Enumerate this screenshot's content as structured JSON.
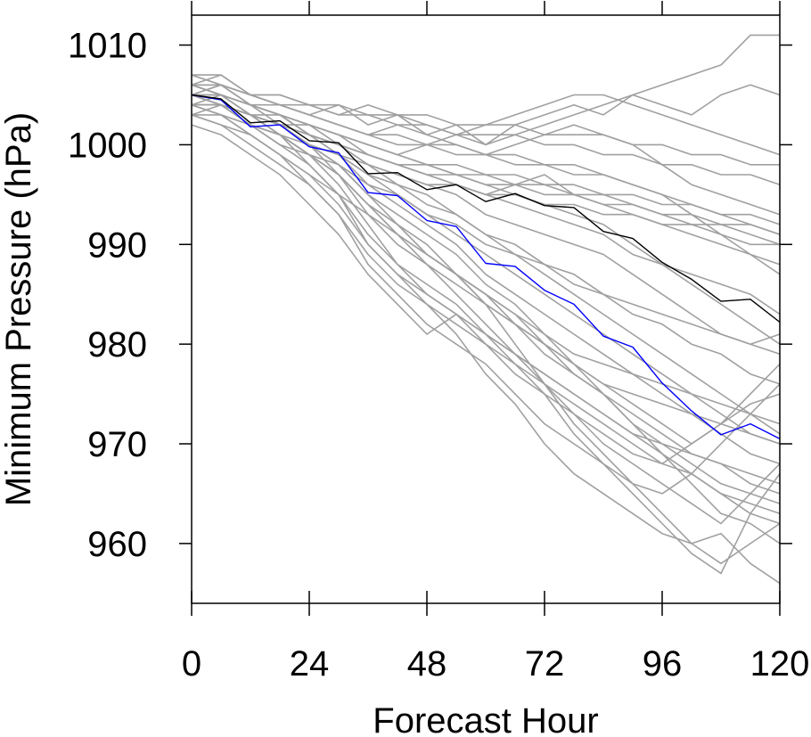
{
  "chart_data": {
    "type": "line",
    "title": "",
    "xlabel": "Forecast Hour",
    "ylabel": "Minimum Pressure (hPa)",
    "xlim": [
      0,
      120
    ],
    "ylim": [
      954,
      1013
    ],
    "xticks": [
      0,
      24,
      48,
      72,
      96,
      120
    ],
    "xtick_labels": [
      "0",
      "24",
      "48",
      "72",
      "96",
      "120"
    ],
    "yticks": [
      960,
      970,
      980,
      990,
      1000,
      1010
    ],
    "ytick_labels": [
      "960",
      "970",
      "980",
      "990",
      "1000",
      "1010"
    ],
    "grid": false,
    "legend": "none",
    "colors": {
      "ensemble": "#a0a0a0",
      "mean": "#000000",
      "highlight": "#0000ff"
    },
    "x": [
      0,
      6,
      12,
      18,
      24,
      30,
      36,
      42,
      48,
      54,
      60,
      66,
      72,
      78,
      84,
      90,
      96,
      102,
      108,
      114,
      120
    ],
    "series": [
      {
        "role": "highlight",
        "values": [
          1005,
          1004.5,
          1001.8,
          1002,
          999.8,
          999.2,
          995.2,
          994.9,
          992.4,
          991.8,
          988.1,
          987.8,
          985.4,
          984,
          980.8,
          979.7,
          976.1,
          973.3,
          970.9,
          972,
          970.5
        ]
      },
      {
        "role": "mean",
        "values": [
          1005,
          1004.6,
          1002.2,
          1002.4,
          1000.4,
          1000.2,
          997.1,
          997.2,
          995.5,
          996,
          994.3,
          995.1,
          993.9,
          993.7,
          991.3,
          990.6,
          988.2,
          986.5,
          984.3,
          984.5,
          982.2
        ]
      },
      {
        "role": "ensemble",
        "values": [
          1007,
          1006,
          1004,
          1003,
          1002,
          1001,
          1000,
          999,
          1000,
          1001,
          1000,
          1002,
          1003,
          1004,
          1003,
          1005,
          1006,
          1007,
          1008,
          1011,
          1011
        ]
      },
      {
        "role": "ensemble",
        "values": [
          1006,
          1007,
          1005,
          1004,
          1003,
          1004,
          1002,
          1003,
          1001,
          1002,
          1000,
          1001,
          1002,
          1003,
          1004,
          1005,
          1004,
          1003,
          1005,
          1006,
          1005
        ]
      },
      {
        "role": "ensemble",
        "values": [
          1005,
          1006,
          1005,
          1005,
          1004,
          1003,
          1004,
          1003,
          1002,
          1001,
          1002,
          1003,
          1004,
          1005,
          1005,
          1004,
          1003,
          1002,
          1001,
          1000,
          999
        ]
      },
      {
        "role": "ensemble",
        "values": [
          1006,
          1005,
          1004,
          1004,
          1003,
          1002,
          1001,
          1002,
          1001,
          1000,
          999,
          1000,
          1001,
          1002,
          1001,
          1000,
          998,
          996,
          995,
          994,
          993
        ]
      },
      {
        "role": "ensemble",
        "values": [
          1004,
          1005,
          1003,
          1002,
          1002,
          1001,
          999,
          998,
          997,
          996,
          995,
          996,
          997,
          995,
          994,
          993,
          992,
          991,
          990,
          989,
          988
        ]
      },
      {
        "role": "ensemble",
        "values": [
          1005,
          1004,
          1003,
          1003,
          1001,
          1000,
          998,
          997,
          996,
          995,
          993,
          992,
          991,
          990,
          989,
          987,
          985,
          983,
          981,
          980,
          979
        ]
      },
      {
        "role": "ensemble",
        "values": [
          1003,
          1004,
          1002,
          1001,
          1000,
          999,
          997,
          995,
          993,
          991,
          989,
          987,
          985,
          983,
          981,
          979,
          977,
          975,
          973,
          971,
          970
        ]
      },
      {
        "role": "ensemble",
        "values": [
          1004,
          1003,
          1002,
          1000,
          999,
          998,
          995,
          993,
          991,
          989,
          986,
          984,
          981,
          978,
          975,
          972,
          969,
          966,
          963,
          962,
          960
        ]
      },
      {
        "role": "ensemble",
        "values": [
          1005,
          1004,
          1003,
          1002,
          1000,
          998,
          995,
          992,
          990,
          987,
          984,
          980,
          976,
          972,
          969,
          966,
          963,
          960,
          958,
          960,
          962
        ]
      },
      {
        "role": "ensemble",
        "values": [
          1006,
          1005,
          1003,
          1001,
          999,
          996,
          992,
          988,
          986,
          984,
          981,
          978,
          975,
          971,
          968,
          965,
          962,
          959,
          957,
          963,
          967
        ]
      },
      {
        "role": "ensemble",
        "values": [
          1004,
          1004,
          1002,
          1001,
          998,
          995,
          990,
          987,
          984,
          981,
          977,
          974,
          970,
          967,
          965,
          963,
          961,
          960,
          961,
          958,
          956
        ]
      },
      {
        "role": "ensemble",
        "values": [
          1005,
          1005,
          1004,
          1002,
          1000,
          997,
          993,
          990,
          988,
          985,
          982,
          979,
          976,
          973,
          970,
          968,
          966,
          964,
          962,
          965,
          968
        ]
      },
      {
        "role": "ensemble",
        "values": [
          1003,
          1002,
          1000,
          998,
          996,
          993,
          989,
          986,
          984,
          982,
          980,
          978,
          976,
          974,
          972,
          970,
          968,
          967,
          965,
          964,
          963
        ]
      },
      {
        "role": "ensemble",
        "values": [
          1002,
          1001,
          999,
          997,
          994,
          991,
          987,
          984,
          981,
          983,
          980,
          977,
          975,
          973,
          971,
          969,
          968,
          970,
          972,
          975,
          978
        ]
      },
      {
        "role": "ensemble",
        "values": [
          1004,
          1003,
          1001,
          999,
          996,
          993,
          988,
          985,
          982,
          980,
          978,
          975,
          972,
          970,
          968,
          966,
          965,
          967,
          970,
          973,
          976
        ]
      },
      {
        "role": "ensemble",
        "values": [
          1006,
          1006,
          1004,
          1003,
          1001,
          999,
          996,
          994,
          992,
          990,
          987,
          985,
          983,
          981,
          979,
          977,
          975,
          973,
          971,
          969,
          968
        ]
      },
      {
        "role": "ensemble",
        "values": [
          1005,
          1004,
          1003,
          1002,
          1000,
          998,
          996,
          995,
          993,
          992,
          990,
          989,
          988,
          986,
          985,
          983,
          982,
          980,
          979,
          977,
          976
        ]
      },
      {
        "role": "ensemble",
        "values": [
          1004,
          1004,
          1002,
          1001,
          999,
          997,
          994,
          992,
          989,
          987,
          984,
          982,
          979,
          977,
          975,
          973,
          971,
          969,
          968,
          966,
          965
        ]
      },
      {
        "role": "ensemble",
        "values": [
          1006,
          1005,
          1004,
          1003,
          1002,
          1000,
          999,
          998,
          997,
          996,
          995,
          994,
          993,
          992,
          991,
          989,
          988,
          987,
          986,
          985,
          983
        ]
      },
      {
        "role": "ensemble",
        "values": [
          1005,
          1005,
          1004,
          1003,
          1001,
          1000,
          998,
          997,
          996,
          996,
          995,
          995,
          994,
          994,
          993,
          993,
          992,
          992,
          991,
          990,
          990
        ]
      },
      {
        "role": "ensemble",
        "values": [
          1007,
          1006,
          1005,
          1004,
          1003,
          1002,
          1001,
          1000,
          1000,
          999,
          999,
          998,
          998,
          997,
          997,
          996,
          995,
          994,
          993,
          992,
          991
        ]
      },
      {
        "role": "ensemble",
        "values": [
          1004,
          1004,
          1003,
          1002,
          1001,
          1000,
          999,
          998,
          997,
          997,
          996,
          996,
          995,
          995,
          994,
          994,
          993,
          993,
          992,
          992,
          991
        ]
      },
      {
        "role": "ensemble",
        "values": [
          1005,
          1006,
          1005,
          1004,
          1004,
          1003,
          1003,
          1002,
          1002,
          1001,
          1001,
          1001,
          1000,
          1000,
          999,
          999,
          998,
          998,
          997,
          997,
          996
        ]
      },
      {
        "role": "ensemble",
        "values": [
          1006,
          1005,
          1004,
          1003,
          1002,
          1001,
          1000,
          999,
          998,
          997,
          997,
          996,
          996,
          995,
          995,
          994,
          993,
          992,
          992,
          991,
          990
        ]
      },
      {
        "role": "ensemble",
        "values": [
          1003,
          1003,
          1002,
          1001,
          999,
          997,
          994,
          991,
          989,
          987,
          985,
          983,
          980,
          978,
          976,
          974,
          972,
          970,
          972,
          974,
          975
        ]
      },
      {
        "role": "ensemble",
        "values": [
          1005,
          1004,
          1002,
          1000,
          998,
          995,
          991,
          988,
          985,
          983,
          981,
          979,
          977,
          975,
          973,
          971,
          970,
          969,
          968,
          967,
          966
        ]
      },
      {
        "role": "ensemble",
        "values": [
          1006,
          1005,
          1003,
          1001,
          999,
          997,
          994,
          991,
          988,
          986,
          984,
          982,
          980,
          978,
          976,
          975,
          974,
          973,
          972,
          971,
          970
        ]
      },
      {
        "role": "ensemble",
        "values": [
          1004,
          1003,
          1001,
          999,
          997,
          995,
          993,
          991,
          989,
          987,
          985,
          983,
          981,
          979,
          978,
          977,
          976,
          975,
          974,
          973,
          972
        ]
      },
      {
        "role": "ensemble",
        "values": [
          1005,
          1005,
          1003,
          1002,
          1000,
          999,
          997,
          996,
          994,
          993,
          991,
          990,
          988,
          987,
          985,
          984,
          983,
          982,
          981,
          980,
          981
        ]
      },
      {
        "role": "ensemble",
        "values": [
          1007,
          1007,
          1005,
          1004,
          1003,
          1002,
          1001,
          1001,
          1000,
          1000,
          999,
          999,
          998,
          998,
          997,
          996,
          995,
          993,
          991,
          989,
          987
        ]
      },
      {
        "role": "ensemble",
        "values": [
          1006,
          1006,
          1005,
          1005,
          1004,
          1004,
          1003,
          1003,
          1003,
          1002,
          1002,
          1002,
          1001,
          1001,
          1001,
          1000,
          1000,
          999,
          999,
          998,
          998
        ]
      },
      {
        "role": "ensemble",
        "values": [
          1005,
          1004,
          1003,
          1002,
          1001,
          1000,
          999,
          998,
          998,
          997,
          996,
          995,
          994,
          993,
          992,
          990,
          988,
          986,
          984,
          982,
          980
        ]
      },
      {
        "role": "ensemble",
        "values": [
          1004,
          1004,
          1003,
          1002,
          1001,
          999,
          998,
          996,
          995,
          993,
          991,
          989,
          987,
          985,
          983,
          981,
          979,
          977,
          975,
          973,
          971
        ]
      },
      {
        "role": "ensemble",
        "values": [
          1006,
          1005,
          1004,
          1003,
          1002,
          1001,
          1000,
          999,
          998,
          998,
          997,
          997,
          996,
          996,
          995,
          995,
          994,
          994,
          993,
          993,
          992
        ]
      },
      {
        "role": "ensemble",
        "values": [
          1003,
          1002,
          1001,
          999,
          997,
          994,
          990,
          987,
          985,
          983,
          981,
          979,
          977,
          975,
          973,
          971,
          969,
          967,
          965,
          963,
          962
        ]
      },
      {
        "role": "ensemble",
        "values": [
          1005,
          1004,
          1003,
          1001,
          999,
          997,
          994,
          992,
          989,
          987,
          985,
          982,
          980,
          977,
          975,
          972,
          970,
          968,
          966,
          965,
          964
        ]
      }
    ]
  }
}
